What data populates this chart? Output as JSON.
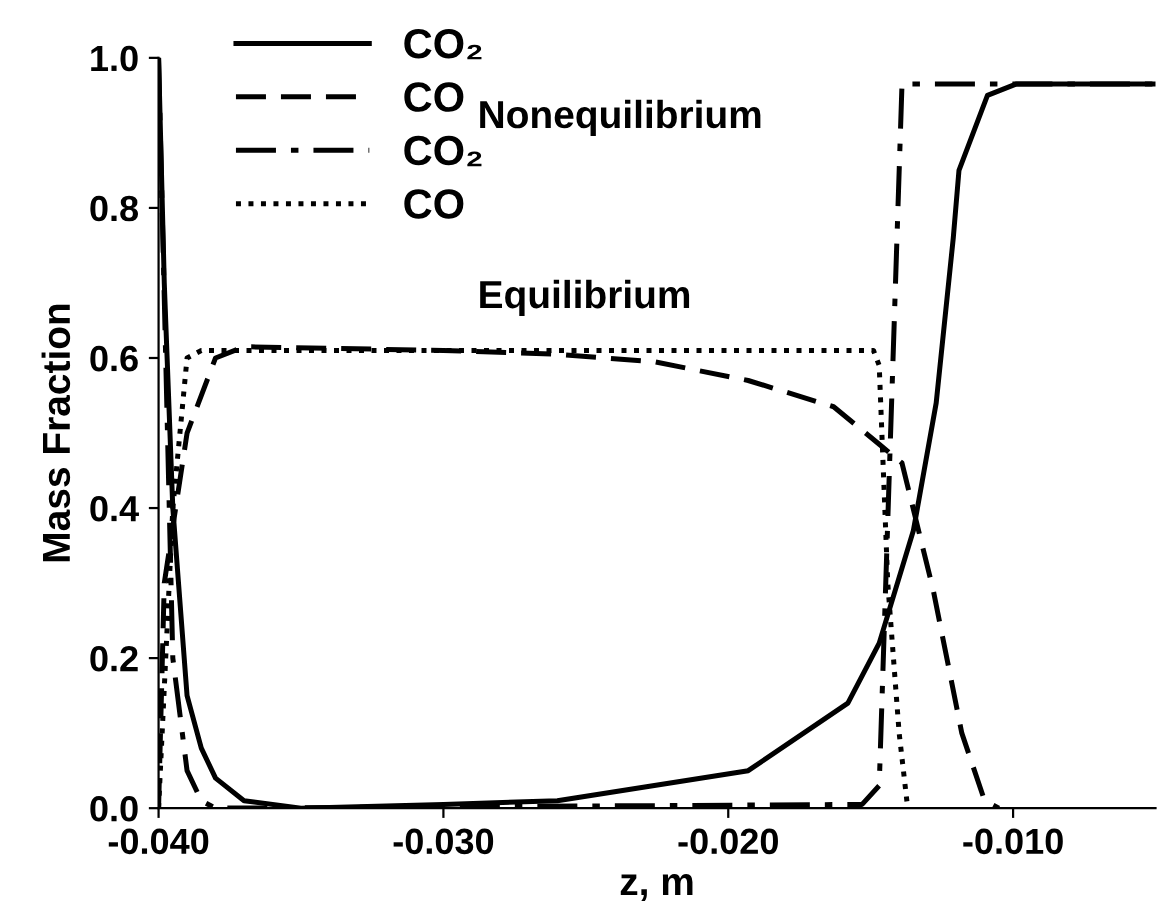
{
  "chart_data": {
    "type": "line",
    "xlabel": "z, m",
    "ylabel": "Mass Fraction",
    "xlim": [
      -0.04,
      -0.005
    ],
    "ylim": [
      0.0,
      1.0
    ],
    "xticks": [
      {
        "value": -0.04,
        "label": "-0.040"
      },
      {
        "value": -0.03,
        "label": "-0.030"
      },
      {
        "value": -0.02,
        "label": "-0.020"
      },
      {
        "value": -0.01,
        "label": "-0.010"
      }
    ],
    "yticks": [
      {
        "value": 0.0,
        "label": "0.0"
      },
      {
        "value": 0.2,
        "label": "0.2"
      },
      {
        "value": 0.4,
        "label": "0.4"
      },
      {
        "value": 0.6,
        "label": "0.6"
      },
      {
        "value": 0.8,
        "label": "0.8"
      },
      {
        "value": 1.0,
        "label": "1.0"
      }
    ],
    "grid": false,
    "legend": "top left",
    "marker": "none",
    "annotations": [
      "Nonequilibrium",
      "Equilibrium"
    ],
    "series": [
      {
        "name": "CO₂",
        "color": "#000000",
        "line_style": "solid",
        "x": [
          -0.04,
          -0.0398,
          -0.0395,
          -0.039,
          -0.0385,
          -0.038,
          -0.037,
          -0.035,
          -0.03,
          -0.026,
          -0.0193,
          -0.0158,
          -0.0147,
          -0.0135,
          -0.0127,
          -0.0121,
          -0.0119,
          -0.0109,
          -0.0099,
          -0.005
        ],
        "values": [
          1.0,
          0.7,
          0.4,
          0.15,
          0.08,
          0.04,
          0.01,
          0.0,
          0.005,
          0.01,
          0.05,
          0.14,
          0.22,
          0.37,
          0.54,
          0.76,
          0.85,
          0.95,
          0.965,
          0.965
        ]
      },
      {
        "name": "CO",
        "color": "#000000",
        "line_style": "dashed",
        "x": [
          -0.04,
          -0.0398,
          -0.039,
          -0.038,
          -0.037,
          -0.03,
          -0.026,
          -0.0226,
          -0.0193,
          -0.0163,
          -0.0147,
          -0.0139,
          -0.0128,
          -0.0118,
          -0.011,
          -0.0105
        ],
        "values": [
          0.0,
          0.3,
          0.5,
          0.6,
          0.615,
          0.61,
          0.605,
          0.595,
          0.57,
          0.535,
          0.485,
          0.46,
          0.29,
          0.1,
          0.01,
          0.0
        ]
      },
      {
        "name": "CO₂",
        "color": "#000000",
        "line_style": "dashdot",
        "x": [
          -0.04,
          -0.0395,
          -0.039,
          -0.0385,
          -0.038,
          -0.0153,
          -0.0147,
          -0.0143,
          -0.0139,
          -0.005
        ],
        "values": [
          1.0,
          0.2,
          0.05,
          0.01,
          0.0,
          0.005,
          0.03,
          0.5,
          0.965,
          0.965
        ]
      },
      {
        "name": "CO",
        "color": "#000000",
        "line_style": "dotted",
        "x": [
          -0.04,
          -0.0395,
          -0.039,
          -0.0385,
          -0.0149,
          -0.0147,
          -0.0144,
          -0.014,
          -0.0137
        ],
        "values": [
          0.0,
          0.4,
          0.6,
          0.61,
          0.61,
          0.59,
          0.3,
          0.1,
          0.0
        ]
      }
    ]
  }
}
